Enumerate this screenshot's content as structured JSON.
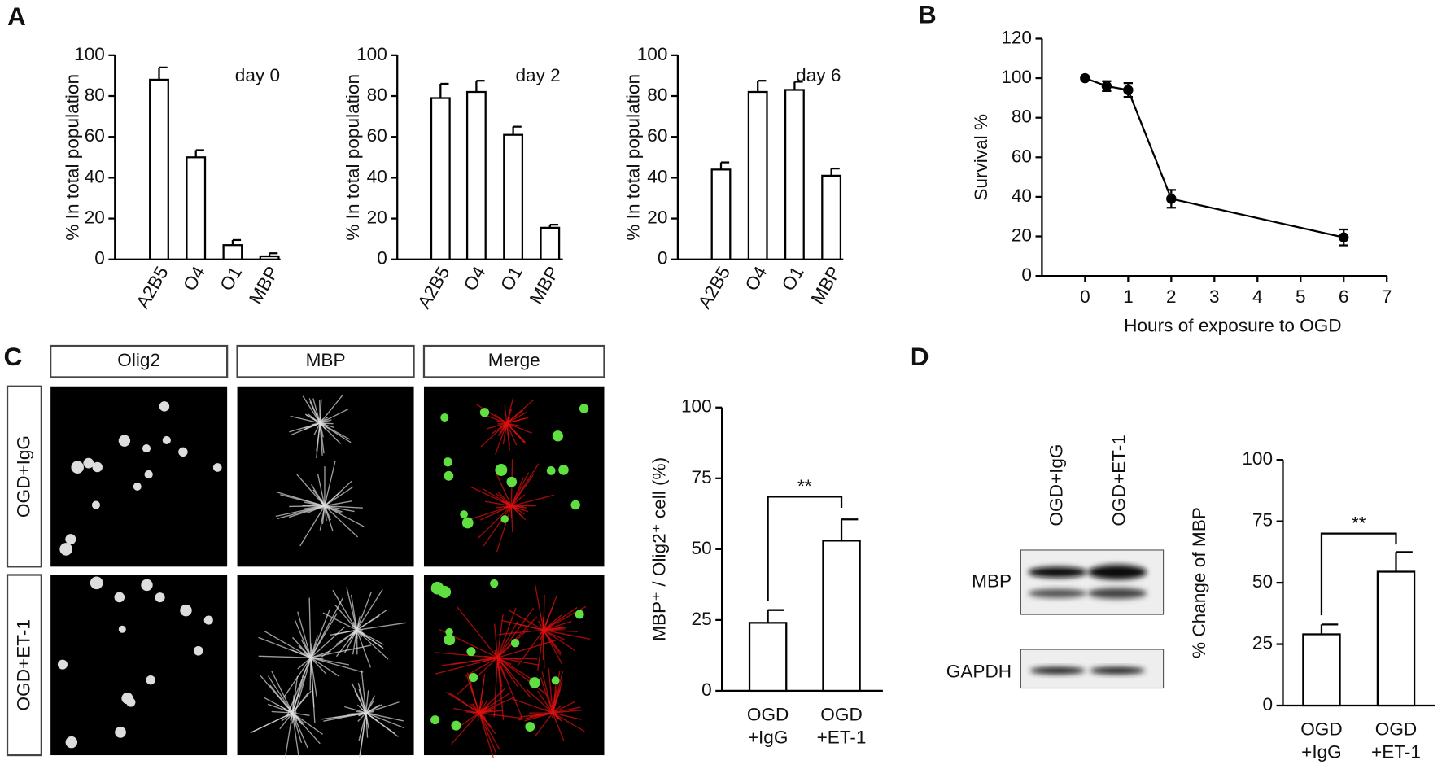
{
  "panel_labels": [
    "A",
    "B",
    "C",
    "D"
  ],
  "image_panel": {
    "columns": [
      "Olig2",
      "MBP",
      "Merge"
    ],
    "rows": [
      "OGD+IgG",
      "OGD+ET-1"
    ]
  },
  "blot": {
    "lanes": [
      "OGD+IgG",
      "OGD+ET-1"
    ],
    "bands": [
      "MBP",
      "GAPDH"
    ]
  },
  "chart_data": [
    {
      "type": "bar",
      "annotation": "day 0",
      "y_label": "% In total population",
      "categories": [
        "A2B5",
        "O4",
        "O1",
        "MBP"
      ],
      "values": [
        88,
        50,
        7,
        1.5
      ],
      "errors": [
        6,
        3.5,
        2.5,
        1.5
      ],
      "color": "#ffffff",
      "ylim": [
        0,
        100
      ],
      "yticks": [
        0,
        20,
        40,
        60,
        80,
        100
      ]
    },
    {
      "type": "bar",
      "annotation": "day 2",
      "y_label": "% In total population",
      "categories": [
        "A2B5",
        "O4",
        "O1",
        "MBP"
      ],
      "values": [
        79,
        82,
        61,
        15.5
      ],
      "errors": [
        7,
        5.5,
        4,
        1.5
      ],
      "color": "#ffffff",
      "ylim": [
        0,
        100
      ],
      "yticks": [
        0,
        20,
        40,
        60,
        80,
        100
      ]
    },
    {
      "type": "bar",
      "annotation": "day 6",
      "y_label": "% In total population",
      "categories": [
        "A2B5",
        "O4",
        "O1",
        "MBP"
      ],
      "values": [
        44,
        82,
        83,
        41
      ],
      "errors": [
        3.5,
        5.5,
        4,
        3.5
      ],
      "color": "#ffffff",
      "ylim": [
        0,
        100
      ],
      "yticks": [
        0,
        20,
        40,
        60,
        80,
        100
      ]
    },
    {
      "type": "line",
      "y_label": "Survival %",
      "x_label": "Hours of exposure to OGD",
      "x": [
        0,
        0.5,
        1,
        2,
        6
      ],
      "values": [
        100,
        96,
        94,
        39,
        19.5
      ],
      "errors": [
        0,
        2.5,
        3.5,
        4.5,
        4
      ],
      "color": "#000000",
      "xlim": [
        -1,
        7
      ],
      "xticks": [
        0,
        1,
        2,
        3,
        4,
        5,
        6,
        7
      ],
      "ylim": [
        0,
        120
      ],
      "yticks": [
        0,
        20,
        40,
        60,
        80,
        100,
        120
      ]
    },
    {
      "type": "bar",
      "y_label": "MBP⁺ / Olig2⁺ cell (%)",
      "significance": "**",
      "categories": [
        [
          "OGD",
          "+IgG"
        ],
        [
          "OGD",
          "+ET-1"
        ]
      ],
      "values": [
        24,
        53
      ],
      "errors": [
        4.5,
        7.5
      ],
      "color": "#ffffff",
      "ylim": [
        0,
        100
      ],
      "yticks": [
        0,
        25,
        50,
        75,
        100
      ]
    },
    {
      "type": "bar",
      "y_label": "% Change of MBP",
      "significance": "**",
      "categories": [
        [
          "OGD",
          "+IgG"
        ],
        [
          "OGD",
          "+ET-1"
        ]
      ],
      "values": [
        29,
        54.5
      ],
      "errors": [
        4,
        8
      ],
      "color": "#ffffff",
      "ylim": [
        0,
        100
      ],
      "yticks": [
        0,
        25,
        50,
        75,
        100
      ]
    }
  ]
}
